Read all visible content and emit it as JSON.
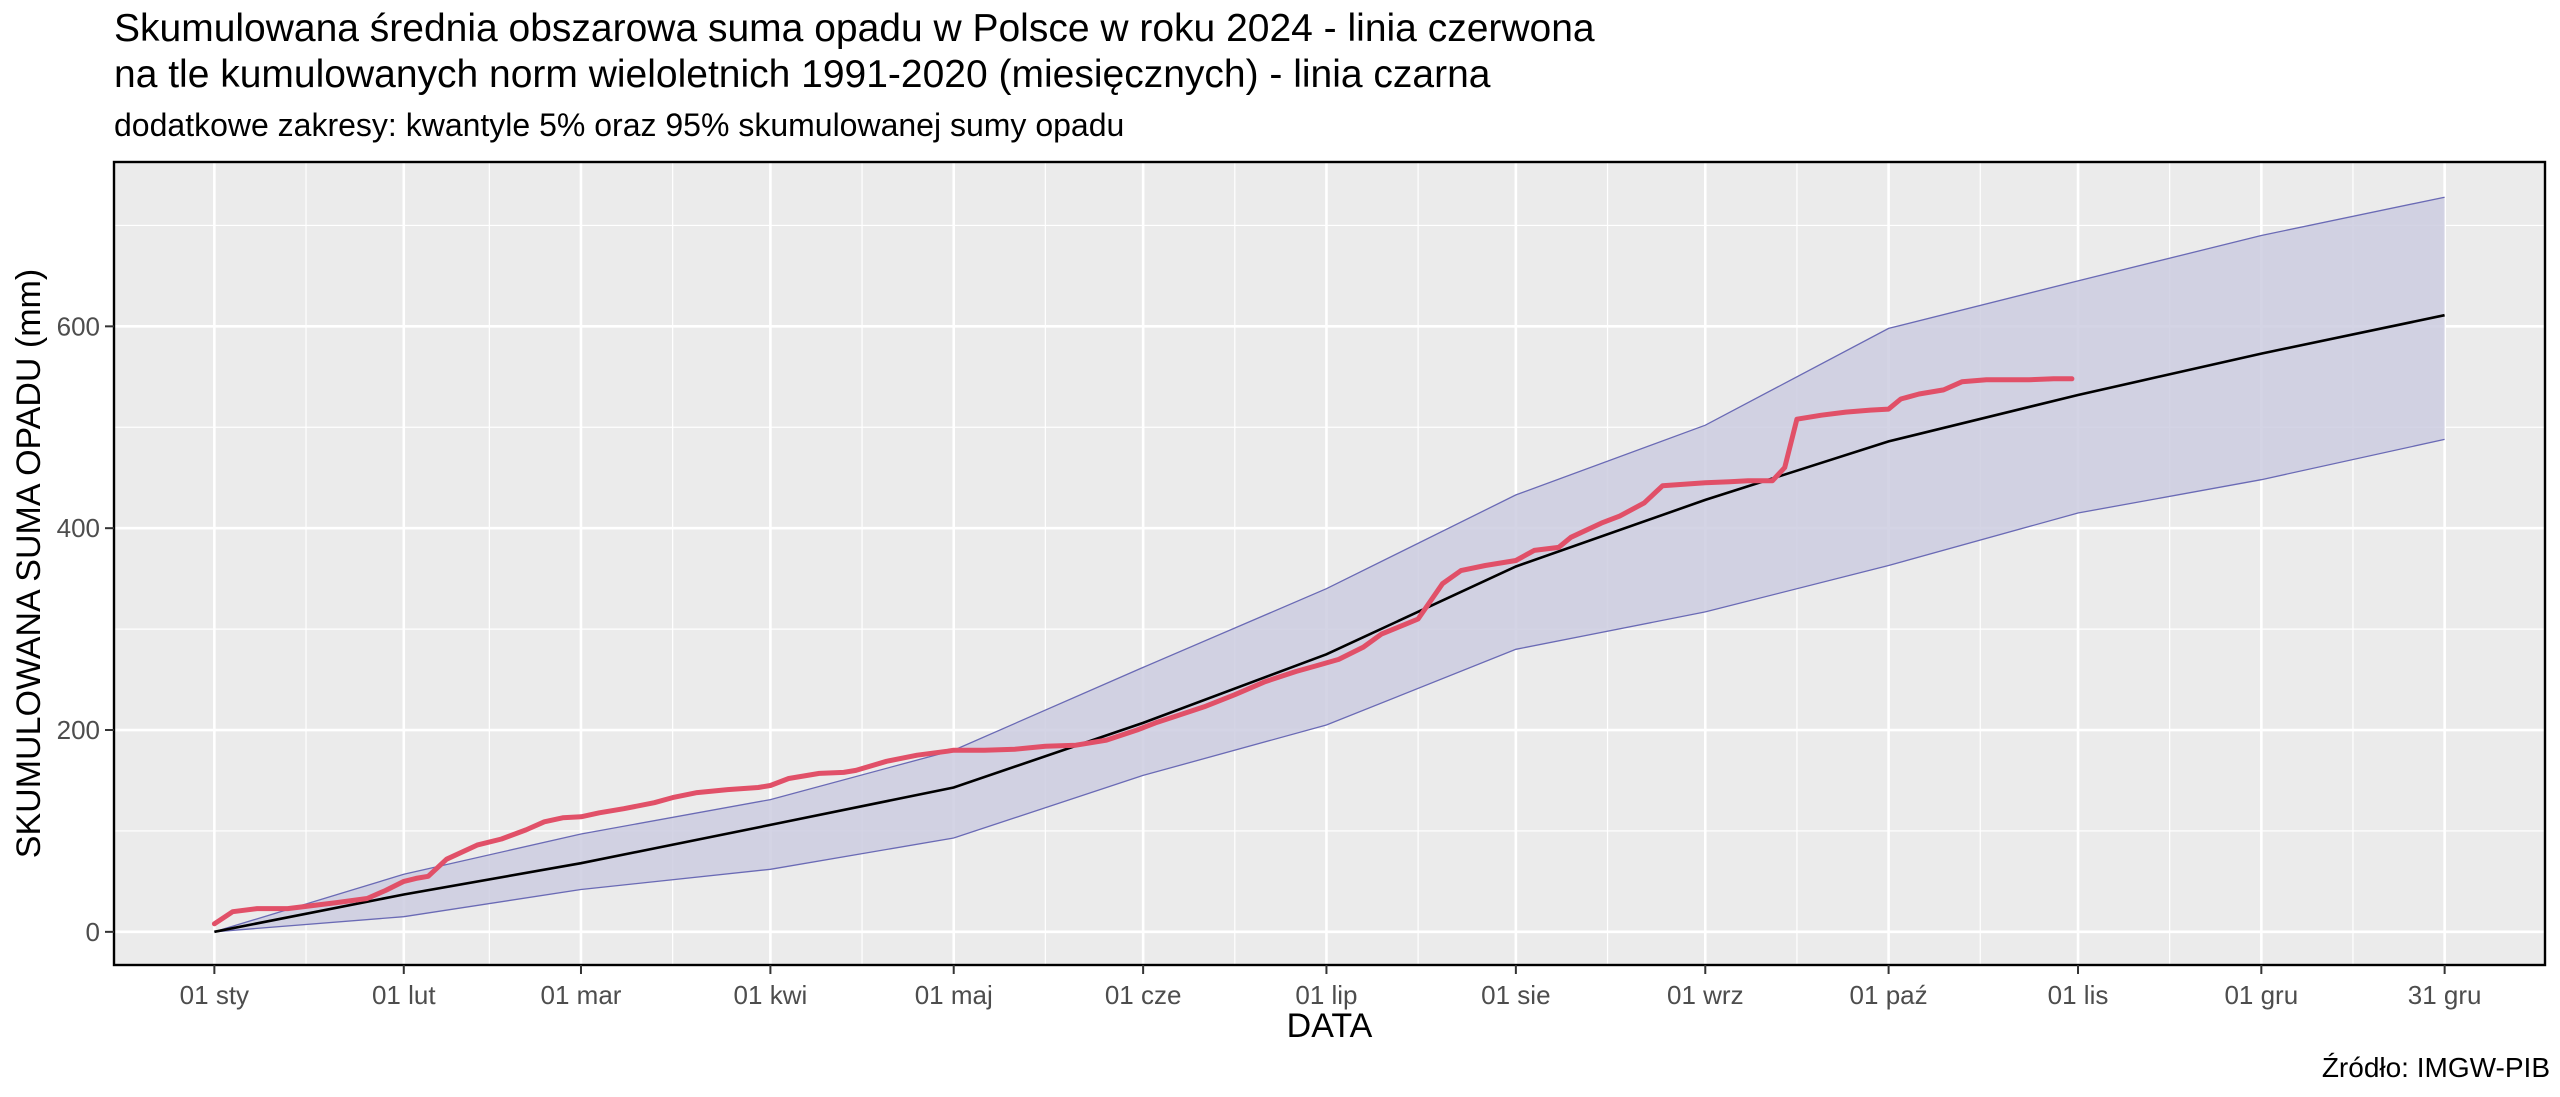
{
  "chart_data": {
    "type": "line",
    "title": "Skumulowana średnia obszarowa suma opadu w Polsce w roku 2024 - linia czerwona",
    "title_line2": "na tle kumulowanych norm wieloletnich 1991-2020 (miesięcznych) - linia czarna",
    "subtitle": "dodatkowe zakresy: kwantyle 5% oraz 95% skumulowanej sumy opadu",
    "xlabel": "DATA",
    "ylabel": "SKUMULOWANA SUMA OPADU (mm)",
    "caption": "Źródło: IMGW-PIB",
    "xlim": [
      "2024-01-01",
      "2024-12-31"
    ],
    "ylim": [
      0,
      730
    ],
    "x_ticks": [
      {
        "date": "2024-01-01",
        "label": "01 sty"
      },
      {
        "date": "2024-02-01",
        "label": "01 lut"
      },
      {
        "date": "2024-03-01",
        "label": "01 mar"
      },
      {
        "date": "2024-04-01",
        "label": "01 kwi"
      },
      {
        "date": "2024-05-01",
        "label": "01 maj"
      },
      {
        "date": "2024-06-01",
        "label": "01 cze"
      },
      {
        "date": "2024-07-01",
        "label": "01 lip"
      },
      {
        "date": "2024-08-01",
        "label": "01 sie"
      },
      {
        "date": "2024-09-01",
        "label": "01 wrz"
      },
      {
        "date": "2024-10-01",
        "label": "01 paź"
      },
      {
        "date": "2024-11-01",
        "label": "01 lis"
      },
      {
        "date": "2024-12-01",
        "label": "01 gru"
      },
      {
        "date": "2024-12-31",
        "label": "31 gru"
      }
    ],
    "y_ticks": [
      0,
      200,
      400,
      600
    ],
    "grid": true,
    "colors": {
      "panel": "#ebebeb",
      "grid": "#ffffff",
      "band_fill": "#cdcde1",
      "band_edge": "#6a6ab5",
      "norm_line": "#000000",
      "actual_line": "#e15068"
    },
    "series": [
      {
        "role": "band",
        "x": [
          "2024-01-01",
          "2024-02-01",
          "2024-03-01",
          "2024-04-01",
          "2024-05-01",
          "2024-06-01",
          "2024-07-01",
          "2024-08-01",
          "2024-09-01",
          "2024-10-01",
          "2024-11-01",
          "2024-12-01",
          "2024-12-31"
        ],
        "lower": [
          0,
          15,
          42,
          62,
          93,
          155,
          205,
          280,
          317,
          363,
          415,
          448,
          488
        ],
        "upper": [
          0,
          57,
          97,
          131,
          180,
          262,
          340,
          433,
          502,
          598,
          645,
          690,
          728
        ]
      },
      {
        "role": "norm",
        "x": [
          "2024-01-01",
          "2024-02-01",
          "2024-03-01",
          "2024-04-01",
          "2024-05-01",
          "2024-06-01",
          "2024-07-01",
          "2024-08-01",
          "2024-09-01",
          "2024-10-01",
          "2024-11-01",
          "2024-12-01",
          "2024-12-31"
        ],
        "values": [
          0,
          37,
          68,
          106,
          143,
          207,
          275,
          362,
          428,
          486,
          532,
          573,
          611
        ]
      },
      {
        "role": "actual",
        "x": [
          "2024-01-01",
          "2024-01-04",
          "2024-01-08",
          "2024-01-13",
          "2024-01-17",
          "2024-01-21",
          "2024-01-26",
          "2024-01-29",
          "2024-02-01",
          "2024-02-03",
          "2024-02-05",
          "2024-02-08",
          "2024-02-13",
          "2024-02-17",
          "2024-02-21",
          "2024-02-24",
          "2024-02-27",
          "2024-03-01",
          "2024-03-04",
          "2024-03-08",
          "2024-03-13",
          "2024-03-16",
          "2024-03-20",
          "2024-03-25",
          "2024-03-30",
          "2024-04-01",
          "2024-04-04",
          "2024-04-09",
          "2024-04-13",
          "2024-04-15",
          "2024-04-20",
          "2024-04-25",
          "2024-04-30",
          "2024-05-01",
          "2024-05-06",
          "2024-05-11",
          "2024-05-16",
          "2024-05-21",
          "2024-05-26",
          "2024-05-31",
          "2024-06-03",
          "2024-06-06",
          "2024-06-11",
          "2024-06-16",
          "2024-06-21",
          "2024-06-26",
          "2024-06-29",
          "2024-07-03",
          "2024-07-07",
          "2024-07-10",
          "2024-07-14",
          "2024-07-16",
          "2024-07-20",
          "2024-07-23",
          "2024-07-27",
          "2024-08-01",
          "2024-08-04",
          "2024-08-08",
          "2024-08-10",
          "2024-08-15",
          "2024-08-18",
          "2024-08-22",
          "2024-08-25",
          "2024-09-01",
          "2024-09-05",
          "2024-09-08",
          "2024-09-12",
          "2024-09-14",
          "2024-09-16",
          "2024-09-20",
          "2024-09-24",
          "2024-09-28",
          "2024-10-01",
          "2024-10-03",
          "2024-10-06",
          "2024-10-10",
          "2024-10-13",
          "2024-10-17",
          "2024-10-20",
          "2024-10-24",
          "2024-10-28",
          "2024-10-31"
        ],
        "values": [
          8,
          20,
          23,
          23,
          26,
          29,
          33,
          41,
          50,
          53,
          55,
          72,
          86,
          92,
          101,
          109,
          113,
          114,
          118,
          122,
          128,
          133,
          138,
          141,
          143,
          145,
          152,
          157,
          158,
          160,
          169,
          175,
          179,
          180,
          180,
          181,
          184,
          185,
          190,
          200,
          207,
          213,
          223,
          235,
          248,
          258,
          263,
          270,
          282,
          295,
          305,
          310,
          345,
          358,
          363,
          368,
          378,
          381,
          391,
          405,
          412,
          425,
          442,
          445,
          446,
          447,
          447,
          460,
          508,
          512,
          515,
          517,
          518,
          528,
          533,
          537,
          545,
          547,
          547,
          547,
          548,
          548
        ]
      }
    ]
  }
}
